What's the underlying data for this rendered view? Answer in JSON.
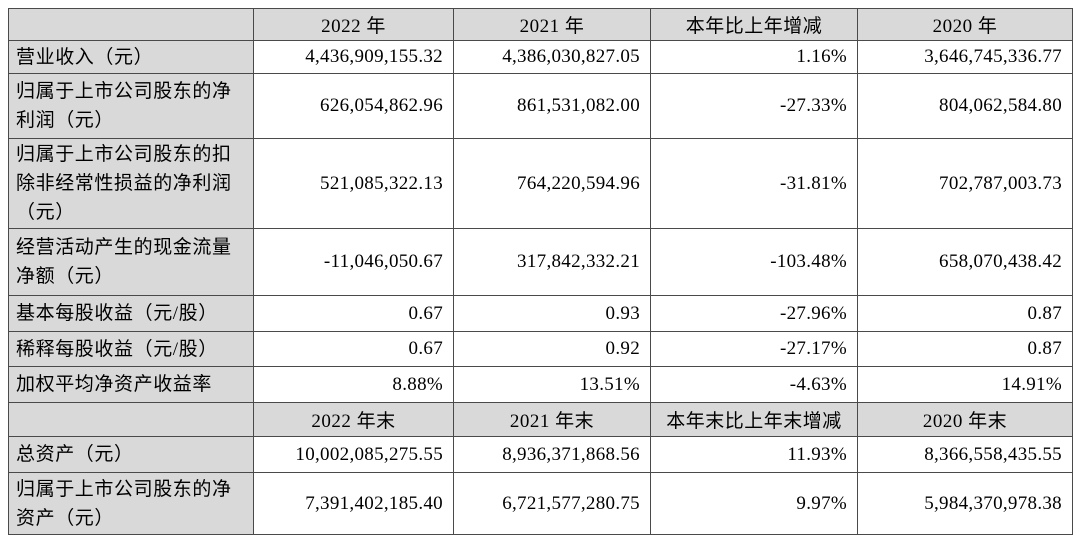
{
  "colors": {
    "header_bg": "#d9d9d9",
    "label_bg": "#d9d9d9",
    "border": "#4a4a4a",
    "text": "#000000",
    "page_bg": "#ffffff"
  },
  "table": {
    "header_top": [
      "",
      "2022 年",
      "2021 年",
      "本年比上年增减",
      "2020 年"
    ],
    "rows_top": [
      {
        "label": "营业收入（元）",
        "values": [
          "4,436,909,155.32",
          "4,386,030,827.05",
          "1.16%",
          "3,646,745,336.77"
        ]
      },
      {
        "label": "归属于上市公司股东的净利润（元）",
        "values": [
          "626,054,862.96",
          "861,531,082.00",
          "-27.33%",
          "804,062,584.80"
        ]
      },
      {
        "label": "归属于上市公司股东的扣除非经常性损益的净利润（元）",
        "values": [
          "521,085,322.13",
          "764,220,594.96",
          "-31.81%",
          "702,787,003.73"
        ]
      },
      {
        "label": "经营活动产生的现金流量净额（元）",
        "values": [
          "-11,046,050.67",
          "317,842,332.21",
          "-103.48%",
          "658,070,438.42"
        ]
      },
      {
        "label": "基本每股收益（元/股）",
        "values": [
          "0.67",
          "0.93",
          "-27.96%",
          "0.87"
        ]
      },
      {
        "label": "稀释每股收益（元/股）",
        "values": [
          "0.67",
          "0.92",
          "-27.17%",
          "0.87"
        ]
      },
      {
        "label": "加权平均净资产收益率",
        "values": [
          "8.88%",
          "13.51%",
          "-4.63%",
          "14.91%"
        ]
      }
    ],
    "header_bottom": [
      "",
      "2022 年末",
      "2021 年末",
      "本年末比上年末增减",
      "2020 年末"
    ],
    "rows_bottom": [
      {
        "label": "总资产（元）",
        "values": [
          "10,002,085,275.55",
          "8,936,371,868.56",
          "11.93%",
          "8,366,558,435.55"
        ]
      },
      {
        "label": "归属于上市公司股东的净资产（元）",
        "values": [
          "7,391,402,185.40",
          "6,721,577,280.75",
          "9.97%",
          "5,984,370,978.38"
        ]
      }
    ]
  }
}
